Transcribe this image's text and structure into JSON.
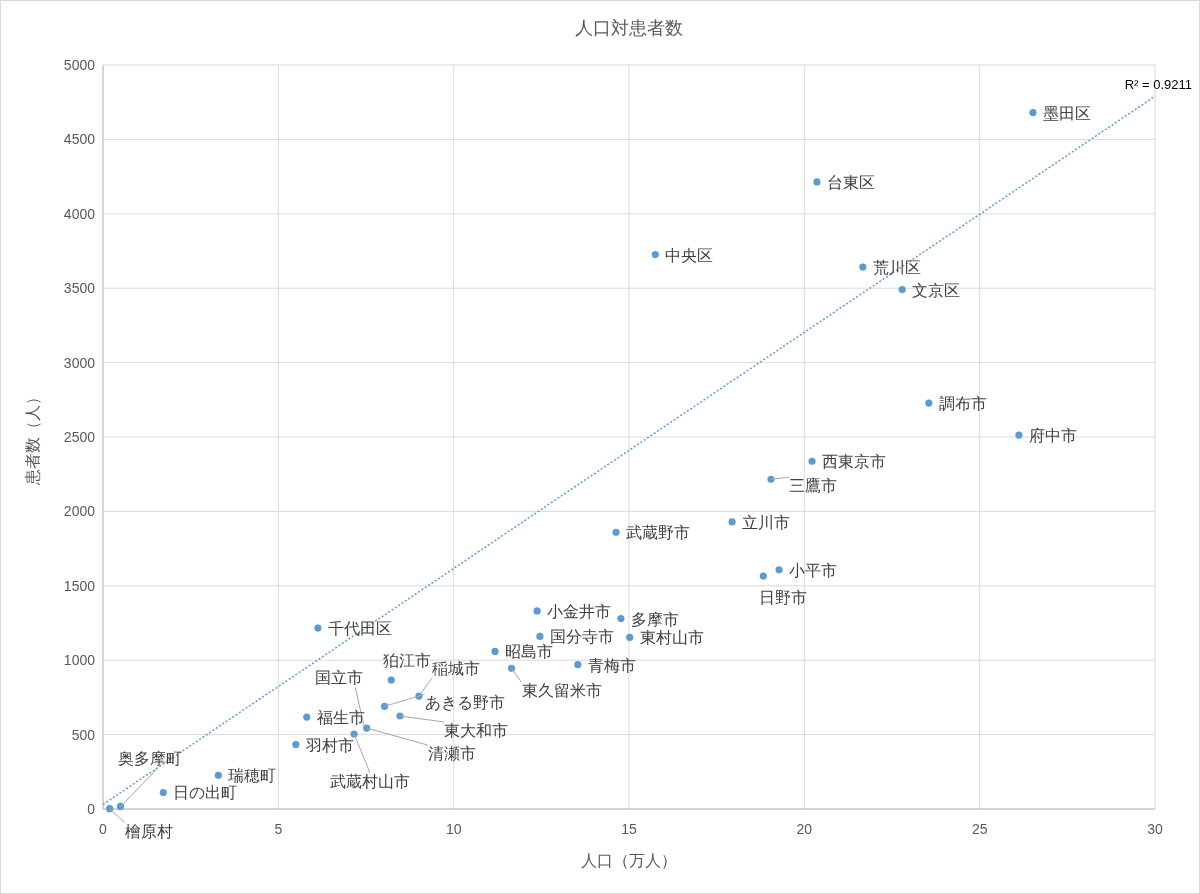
{
  "chart_data": {
    "type": "scatter",
    "title": "人口対患者数",
    "xlabel": "人口（万人）",
    "ylabel": "患者数（人）",
    "xlim": [
      0,
      30
    ],
    "xticks": [
      0,
      5,
      10,
      15,
      20,
      25,
      30
    ],
    "ylim": [
      0,
      5000
    ],
    "yticks": [
      0,
      500,
      1000,
      1500,
      2000,
      2500,
      3000,
      3500,
      4000,
      4500,
      5000
    ],
    "grid": true,
    "series": [
      {
        "marker": "circle",
        "color": "#5b9bd5",
        "x": [
          26.52,
          20.36,
          15.75,
          21.67,
          22.79,
          23.55,
          26.12,
          20.22,
          19.05,
          17.94,
          14.63,
          19.28,
          18.83,
          12.38,
          14.77,
          12.46,
          15.02,
          6.13,
          11.18,
          13.54,
          11.65,
          8.22,
          9.01,
          8.03,
          null,
          8.47,
          5.81,
          7.52,
          7.16,
          5.5,
          3.29,
          1.72,
          0.5,
          0.19
        ],
        "values": [
          4680,
          4214,
          3726,
          3642,
          3491,
          2728,
          2513,
          2337,
          2216,
          1929,
          1860,
          1608,
          1566,
          1331,
          1280,
          1160,
          1153,
          1216,
          1059,
          970,
          946,
          867,
          759,
          690,
          null,
          625,
          618,
          544,
          504,
          433,
          226,
          111,
          17,
          2
        ]
      },
      {
        "type": "line",
        "color": "#5b9bd5",
        "line_style": "dotted",
        "x": [
          0,
          30
        ],
        "values": [
          30,
          4790
        ]
      }
    ],
    "annotations": [
      {
        "text": "墨田区",
        "x": 26.52,
        "y": 4680
      },
      {
        "text": "台東区",
        "x": 20.36,
        "y": 4214
      },
      {
        "text": "中央区",
        "x": 15.75,
        "y": 3726
      },
      {
        "text": "荒川区",
        "x": 21.67,
        "y": 3642
      },
      {
        "text": "文京区",
        "x": 22.79,
        "y": 3491
      },
      {
        "text": "調布市",
        "x": 23.55,
        "y": 2728
      },
      {
        "text": "府中市",
        "x": 26.12,
        "y": 2513
      },
      {
        "text": "西東京市",
        "x": 20.22,
        "y": 2337
      },
      {
        "text": "三鷹市",
        "x": 19.05,
        "y": 2216
      },
      {
        "text": "立川市",
        "x": 17.94,
        "y": 1929
      },
      {
        "text": "武蔵野市",
        "x": 14.63,
        "y": 1860
      },
      {
        "text": "小平市",
        "x": 19.28,
        "y": 1608
      },
      {
        "text": "日野市",
        "x": 18.83,
        "y": 1566
      },
      {
        "text": "小金井市",
        "x": 12.38,
        "y": 1331
      },
      {
        "text": "多摩市",
        "x": 14.77,
        "y": 1280
      },
      {
        "text": "国分寺市",
        "x": 12.46,
        "y": 1160
      },
      {
        "text": "東村山市",
        "x": 15.02,
        "y": 1153
      },
      {
        "text": "千代田区",
        "x": 6.13,
        "y": 1216
      },
      {
        "text": "昭島市",
        "x": 11.18,
        "y": 1059
      },
      {
        "text": "青梅市",
        "x": 13.54,
        "y": 970
      },
      {
        "text": "東久留米市",
        "x": 11.65,
        "y": 946
      },
      {
        "text": "狛江市",
        "x": 8.22,
        "y": 867
      },
      {
        "text": "稲城市",
        "x": 9.01,
        "y": 759
      },
      {
        "text": "あきる野市",
        "x": 8.03,
        "y": 690
      },
      {
        "text": "国立市",
        "x": 7.45,
        "y": 555
      },
      {
        "text": "東大和市",
        "x": 8.47,
        "y": 625
      },
      {
        "text": "福生市",
        "x": 5.81,
        "y": 618
      },
      {
        "text": "清瀬市",
        "x": 7.52,
        "y": 544
      },
      {
        "text": "武蔵村山市",
        "x": 7.16,
        "y": 504
      },
      {
        "text": "羽村市",
        "x": 5.5,
        "y": 433
      },
      {
        "text": "瑞穂町",
        "x": 3.29,
        "y": 226
      },
      {
        "text": "日の出町",
        "x": 1.72,
        "y": 111
      },
      {
        "text": "奥多摩町",
        "x": 0.5,
        "y": 17
      },
      {
        "text": "檜原村",
        "x": 0.19,
        "y": 2
      },
      "R² = 0.9211"
    ]
  }
}
